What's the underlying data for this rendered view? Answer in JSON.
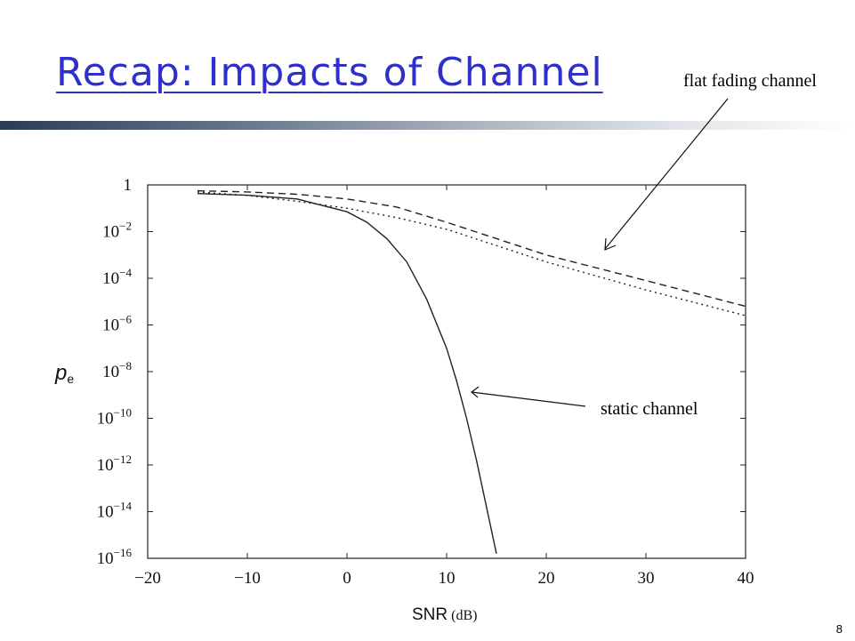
{
  "slide": {
    "title": "Recap: Impacts of Channel",
    "page_number": "8"
  },
  "annotations": {
    "flat_fading": "flat fading channel",
    "static": "static channel"
  },
  "chart_data": {
    "type": "line",
    "xlabel_main": "SNR",
    "xlabel_unit": " (dB)",
    "ylabel_base": "p",
    "ylabel_sub": "e",
    "xlim": [
      -20,
      40
    ],
    "ylim_exponent": [
      -16,
      0
    ],
    "y_scale": "log",
    "x_ticks": [
      -20,
      -10,
      0,
      10,
      20,
      30,
      40
    ],
    "x_tick_labels": [
      "−20",
      "−10",
      "0",
      "10",
      "20",
      "30",
      "40"
    ],
    "y_ticks": [
      {
        "exp": 0,
        "base": "1",
        "sup": ""
      },
      {
        "exp": -2,
        "base": "10",
        "sup": "−2"
      },
      {
        "exp": -4,
        "base": "10",
        "sup": "−4"
      },
      {
        "exp": -6,
        "base": "10",
        "sup": "−6"
      },
      {
        "exp": -8,
        "base": "10",
        "sup": "−8"
      },
      {
        "exp": -10,
        "base": "10",
        "sup": "−10"
      },
      {
        "exp": -12,
        "base": "10",
        "sup": "−12"
      },
      {
        "exp": -14,
        "base": "10",
        "sup": "−14"
      },
      {
        "exp": -16,
        "base": "10",
        "sup": "−16"
      }
    ],
    "grid": false,
    "series": [
      {
        "style": "solid",
        "x": [
          -15,
          -10,
          -5,
          0,
          2,
          4,
          6,
          8,
          10,
          11,
          12,
          13,
          14,
          15
        ],
        "log10_y": [
          -0.37,
          -0.44,
          -0.6,
          -1.15,
          -1.6,
          -2.3,
          -3.3,
          -4.9,
          -7.0,
          -8.4,
          -10.0,
          -11.8,
          -13.8,
          -15.8
        ]
      },
      {
        "style": "dashed",
        "x": [
          -15,
          -10,
          -5,
          0,
          5,
          10,
          20,
          30,
          40
        ],
        "log10_y": [
          -0.25,
          -0.3,
          -0.4,
          -0.6,
          -0.95,
          -1.6,
          -3.0,
          -4.1,
          -5.2
        ]
      },
      {
        "style": "dotted",
        "x": [
          -15,
          -10,
          -5,
          0,
          5,
          10,
          20,
          30,
          40
        ],
        "log10_y": [
          -0.3,
          -0.45,
          -0.7,
          -1.0,
          -1.4,
          -1.9,
          -3.3,
          -4.5,
          -5.6
        ]
      }
    ]
  }
}
